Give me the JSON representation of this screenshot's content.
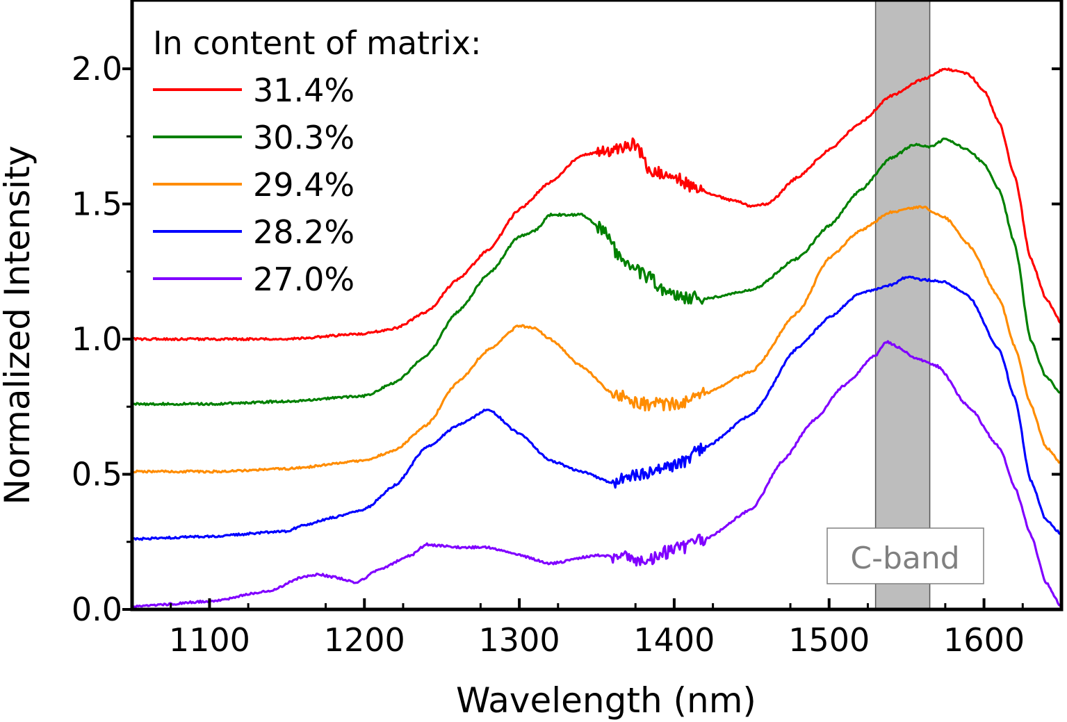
{
  "chart_data": {
    "type": "line",
    "xlabel": "Wavelength (nm)",
    "ylabel": "Normalized Intensity",
    "xlim": [
      1050,
      1650
    ],
    "ylim": [
      0.0,
      2.25
    ],
    "xticks": [
      1100,
      1200,
      1300,
      1400,
      1500,
      1600
    ],
    "xtick_labels": [
      "1100",
      "1200",
      "1300",
      "1400",
      "1500",
      "1600"
    ],
    "yticks": [
      0.0,
      0.5,
      1.0,
      1.5,
      2.0
    ],
    "ytick_labels": [
      "0.0",
      "0.5",
      "1.0",
      "1.5",
      "2.0"
    ],
    "grid": false,
    "legend": {
      "title": "In content of matrix:",
      "placement": "top-left"
    },
    "band": {
      "label": "C-band",
      "x_range": [
        1530,
        1565
      ],
      "color": "#bdbdbd"
    },
    "series": [
      {
        "name": "31.4%",
        "color": "#ff0000",
        "noise_range": [
          1350,
          1420
        ],
        "x": [
          1050,
          1100,
          1150,
          1200,
          1220,
          1240,
          1260,
          1280,
          1300,
          1320,
          1340,
          1360,
          1375,
          1385,
          1400,
          1420,
          1440,
          1450,
          1460,
          1480,
          1500,
          1520,
          1540,
          1560,
          1575,
          1590,
          1600,
          1610,
          1620,
          1630,
          1640,
          1650
        ],
        "y": [
          1.0,
          1.0,
          1.0,
          1.02,
          1.04,
          1.1,
          1.22,
          1.33,
          1.48,
          1.58,
          1.68,
          1.7,
          1.72,
          1.62,
          1.6,
          1.54,
          1.51,
          1.49,
          1.5,
          1.6,
          1.7,
          1.8,
          1.9,
          1.96,
          2.0,
          1.98,
          1.92,
          1.8,
          1.6,
          1.3,
          1.15,
          1.06
        ]
      },
      {
        "name": "30.3%",
        "color": "#008000",
        "noise_range": [
          1350,
          1420
        ],
        "x": [
          1050,
          1100,
          1150,
          1200,
          1220,
          1240,
          1260,
          1280,
          1300,
          1310,
          1320,
          1340,
          1355,
          1365,
          1380,
          1400,
          1420,
          1450,
          1480,
          1500,
          1520,
          1540,
          1555,
          1565,
          1575,
          1590,
          1600,
          1610,
          1620,
          1630,
          1640,
          1650
        ],
        "y": [
          0.76,
          0.76,
          0.77,
          0.79,
          0.84,
          0.94,
          1.1,
          1.24,
          1.38,
          1.4,
          1.46,
          1.46,
          1.4,
          1.3,
          1.24,
          1.16,
          1.15,
          1.18,
          1.3,
          1.42,
          1.55,
          1.67,
          1.72,
          1.71,
          1.74,
          1.7,
          1.65,
          1.55,
          1.35,
          1.0,
          0.86,
          0.8
        ]
      },
      {
        "name": "29.4%",
        "color": "#ff8c00",
        "noise_range": [
          1360,
          1420
        ],
        "x": [
          1050,
          1100,
          1150,
          1200,
          1220,
          1240,
          1260,
          1280,
          1300,
          1310,
          1320,
          1340,
          1360,
          1380,
          1400,
          1420,
          1450,
          1480,
          1500,
          1520,
          1540,
          1560,
          1575,
          1590,
          1610,
          1620,
          1630,
          1640,
          1650
        ],
        "y": [
          0.51,
          0.51,
          0.52,
          0.55,
          0.59,
          0.68,
          0.84,
          0.96,
          1.05,
          1.04,
          1.0,
          0.9,
          0.8,
          0.76,
          0.76,
          0.8,
          0.88,
          1.1,
          1.3,
          1.4,
          1.47,
          1.49,
          1.45,
          1.35,
          1.15,
          0.97,
          0.76,
          0.6,
          0.54
        ]
      },
      {
        "name": "28.2%",
        "color": "#0000ff",
        "noise_range": [
          1360,
          1420
        ],
        "x": [
          1050,
          1100,
          1150,
          1160,
          1180,
          1200,
          1220,
          1240,
          1260,
          1280,
          1300,
          1320,
          1340,
          1360,
          1380,
          1400,
          1420,
          1450,
          1480,
          1500,
          1520,
          1540,
          1550,
          1560,
          1575,
          1590,
          1610,
          1620,
          1630,
          1640,
          1650
        ],
        "y": [
          0.26,
          0.27,
          0.29,
          0.31,
          0.34,
          0.37,
          0.46,
          0.6,
          0.68,
          0.74,
          0.65,
          0.55,
          0.51,
          0.47,
          0.5,
          0.53,
          0.6,
          0.72,
          0.97,
          1.08,
          1.17,
          1.2,
          1.23,
          1.22,
          1.21,
          1.16,
          0.96,
          0.78,
          0.48,
          0.33,
          0.28
        ]
      },
      {
        "name": "27.0%",
        "color": "#8000ff",
        "noise_range": [
          1360,
          1420
        ],
        "x": [
          1050,
          1100,
          1140,
          1160,
          1170,
          1180,
          1195,
          1210,
          1230,
          1240,
          1260,
          1280,
          1300,
          1320,
          1350,
          1370,
          1380,
          1400,
          1420,
          1450,
          1470,
          1490,
          1510,
          1530,
          1537,
          1545,
          1555,
          1570,
          1590,
          1610,
          1620,
          1630,
          1640,
          1650
        ],
        "y": [
          0.01,
          0.03,
          0.07,
          0.12,
          0.13,
          0.12,
          0.1,
          0.15,
          0.2,
          0.24,
          0.23,
          0.23,
          0.2,
          0.17,
          0.2,
          0.19,
          0.18,
          0.22,
          0.26,
          0.37,
          0.55,
          0.7,
          0.83,
          0.94,
          0.99,
          0.97,
          0.93,
          0.9,
          0.75,
          0.6,
          0.45,
          0.28,
          0.1,
          0.01
        ]
      }
    ]
  }
}
